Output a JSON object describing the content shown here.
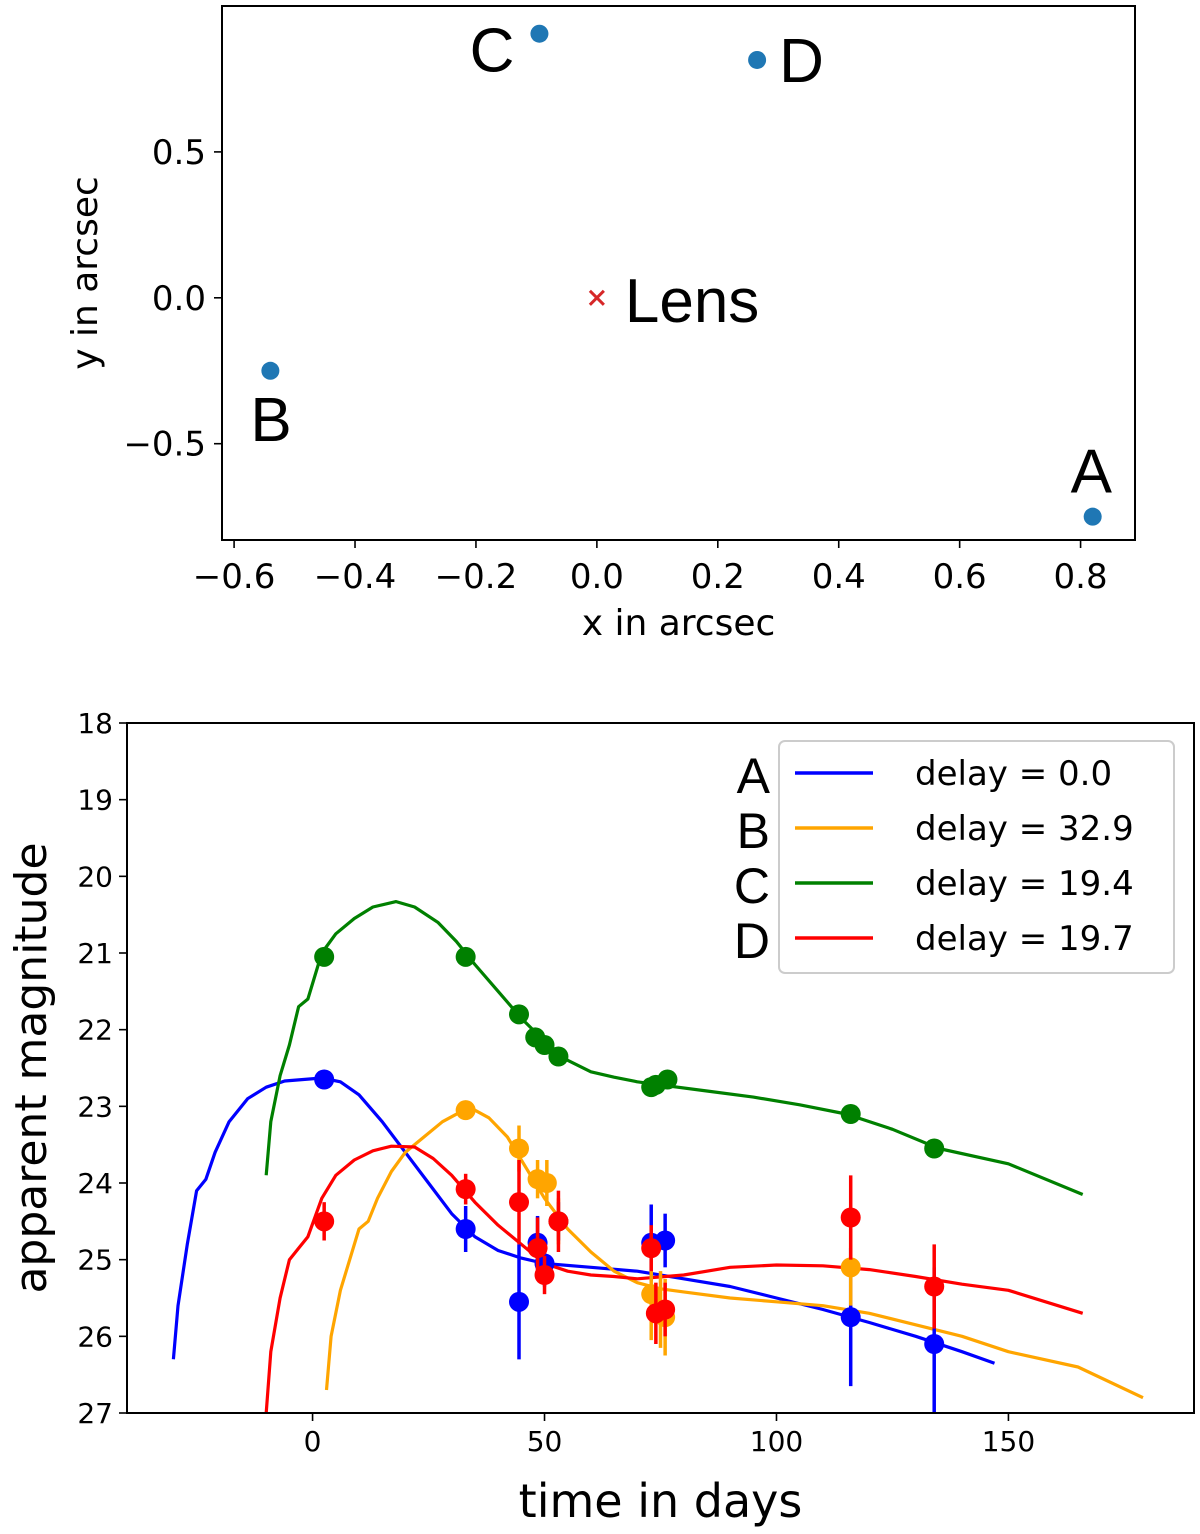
{
  "chart_data": [
    {
      "type": "scatter",
      "title": "",
      "xlabel": "x in arcsec",
      "ylabel": "y in arcsec",
      "xlim": [
        -0.62,
        0.89
      ],
      "ylim": [
        -0.83,
        1.0
      ],
      "xticks": [
        "−0.6",
        "−0.4",
        "−0.2",
        "0.0",
        "0.2",
        "0.4",
        "0.6",
        "0.8"
      ],
      "yticks": [
        "0.5",
        "0.0",
        "−0.5"
      ],
      "point_color": "#1f77b4",
      "lens_color": "#d62728",
      "points": [
        {
          "label": "A",
          "x": 0.82,
          "y": -0.75
        },
        {
          "label": "B",
          "x": -0.54,
          "y": -0.25
        },
        {
          "label": "C",
          "x": -0.095,
          "y": 0.905
        },
        {
          "label": "D",
          "x": 0.265,
          "y": 0.815
        }
      ],
      "lens": {
        "label": "Lens",
        "x": 0.0,
        "y": 0.0
      }
    },
    {
      "type": "line",
      "title": "",
      "xlabel": "time in days",
      "ylabel": "apparent magnitude",
      "xlim": [
        -40,
        190
      ],
      "ylim": [
        27,
        18
      ],
      "xticks": [
        "0",
        "50",
        "100",
        "150"
      ],
      "yticks": [
        "18",
        "19",
        "20",
        "21",
        "22",
        "23",
        "24",
        "25",
        "26",
        "27"
      ],
      "legend_position": "top-right",
      "series": [
        {
          "name": "delay = 0.0",
          "image": "A",
          "color": "#0000ff",
          "curve": [
            [
              -30,
              26.3
            ],
            [
              -29,
              25.6
            ],
            [
              -27,
              24.8
            ],
            [
              -25,
              24.1
            ],
            [
              -23,
              23.95
            ],
            [
              -21,
              23.6
            ],
            [
              -18,
              23.2
            ],
            [
              -14,
              22.9
            ],
            [
              -10,
              22.75
            ],
            [
              -6,
              22.67
            ],
            [
              -2,
              22.65
            ],
            [
              2,
              22.63
            ],
            [
              6,
              22.68
            ],
            [
              10,
              22.85
            ],
            [
              15,
              23.2
            ],
            [
              20,
              23.6
            ],
            [
              25,
              24.0
            ],
            [
              30,
              24.4
            ],
            [
              35,
              24.7
            ],
            [
              40,
              24.88
            ],
            [
              45,
              24.98
            ],
            [
              50,
              25.05
            ],
            [
              60,
              25.1
            ],
            [
              70,
              25.15
            ],
            [
              80,
              25.25
            ],
            [
              90,
              25.35
            ],
            [
              100,
              25.5
            ],
            [
              110,
              25.65
            ],
            [
              120,
              25.82
            ],
            [
              130,
              26.0
            ],
            [
              140,
              26.2
            ],
            [
              147,
              26.35
            ]
          ],
          "points": [
            [
              2.5,
              22.65,
              0.05
            ],
            [
              33,
              24.6,
              0.3
            ],
            [
              44.5,
              25.55,
              0.75
            ],
            [
              48.5,
              24.78,
              0.35
            ],
            [
              50,
              25.05,
              0.3
            ],
            [
              53,
              24.5,
              0.25
            ],
            [
              73,
              24.78,
              0.5
            ],
            [
              76,
              24.75,
              0.35
            ],
            [
              116,
              25.75,
              0.9
            ],
            [
              134,
              26.1,
              1.0
            ]
          ]
        },
        {
          "name": "delay = 32.9",
          "image": "B",
          "color": "#ffa500",
          "curve": [
            [
              3,
              26.7
            ],
            [
              4,
              26.0
            ],
            [
              6,
              25.4
            ],
            [
              8,
              25.0
            ],
            [
              10,
              24.6
            ],
            [
              12,
              24.5
            ],
            [
              14,
              24.2
            ],
            [
              17,
              23.85
            ],
            [
              20,
              23.6
            ],
            [
              24,
              23.4
            ],
            [
              28,
              23.2
            ],
            [
              32,
              23.07
            ],
            [
              35,
              23.05
            ],
            [
              38,
              23.15
            ],
            [
              42,
              23.4
            ],
            [
              46,
              23.8
            ],
            [
              50,
              24.2
            ],
            [
              55,
              24.6
            ],
            [
              60,
              24.9
            ],
            [
              65,
              25.15
            ],
            [
              70,
              25.3
            ],
            [
              75,
              25.38
            ],
            [
              80,
              25.42
            ],
            [
              90,
              25.5
            ],
            [
              100,
              25.55
            ],
            [
              110,
              25.6
            ],
            [
              120,
              25.7
            ],
            [
              130,
              25.85
            ],
            [
              140,
              26.0
            ],
            [
              150,
              26.2
            ],
            [
              165,
              26.4
            ],
            [
              179,
              26.8
            ]
          ],
          "points": [
            [
              33,
              23.05,
              0.05
            ],
            [
              44.5,
              23.55,
              0.3
            ],
            [
              48.5,
              23.95,
              0.25
            ],
            [
              50.5,
              24.0,
              0.3
            ],
            [
              53,
              24.5,
              0.3
            ],
            [
              73,
              25.45,
              0.6
            ],
            [
              75,
              25.65,
              0.5
            ],
            [
              76,
              25.75,
              0.5
            ],
            [
              116,
              25.1,
              0.5
            ]
          ]
        },
        {
          "name": "delay = 19.4",
          "image": "C",
          "color": "#008000",
          "curve": [
            [
              -10,
              23.9
            ],
            [
              -9,
              23.2
            ],
            [
              -7,
              22.6
            ],
            [
              -5,
              22.2
            ],
            [
              -3,
              21.7
            ],
            [
              -1,
              21.6
            ],
            [
              2,
              21.0
            ],
            [
              5,
              20.75
            ],
            [
              9,
              20.55
            ],
            [
              13,
              20.4
            ],
            [
              18,
              20.33
            ],
            [
              22,
              20.4
            ],
            [
              27,
              20.6
            ],
            [
              31,
              20.85
            ],
            [
              35,
              21.15
            ],
            [
              40,
              21.5
            ],
            [
              45,
              21.85
            ],
            [
              50,
              22.15
            ],
            [
              55,
              22.4
            ],
            [
              60,
              22.55
            ],
            [
              65,
              22.62
            ],
            [
              70,
              22.68
            ],
            [
              75,
              22.72
            ],
            [
              85,
              22.8
            ],
            [
              95,
              22.88
            ],
            [
              105,
              22.98
            ],
            [
              115,
              23.1
            ],
            [
              125,
              23.3
            ],
            [
              135,
              23.55
            ],
            [
              150,
              23.75
            ],
            [
              166,
              24.15
            ]
          ],
          "points": [
            [
              2.5,
              21.05,
              0.05
            ],
            [
              33,
              21.05,
              0.05
            ],
            [
              44.5,
              21.8,
              0.05
            ],
            [
              48,
              22.1,
              0.05
            ],
            [
              50,
              22.2,
              0.05
            ],
            [
              53,
              22.35,
              0.05
            ],
            [
              73,
              22.75,
              0.05
            ],
            [
              74,
              22.72,
              0.05
            ],
            [
              76.5,
              22.65,
              0.05
            ],
            [
              116,
              23.1,
              0.05
            ],
            [
              134,
              23.55,
              0.05
            ]
          ]
        },
        {
          "name": "delay = 19.7",
          "image": "D",
          "color": "#ff0000",
          "curve": [
            [
              -10,
              27.0
            ],
            [
              -9,
              26.2
            ],
            [
              -7,
              25.5
            ],
            [
              -5,
              25.0
            ],
            [
              -3,
              24.85
            ],
            [
              -1,
              24.7
            ],
            [
              2,
              24.2
            ],
            [
              5,
              23.9
            ],
            [
              9,
              23.7
            ],
            [
              13,
              23.58
            ],
            [
              17,
              23.52
            ],
            [
              22,
              23.53
            ],
            [
              26,
              23.68
            ],
            [
              30,
              23.9
            ],
            [
              35,
              24.25
            ],
            [
              40,
              24.55
            ],
            [
              45,
              24.8
            ],
            [
              50,
              25.05
            ],
            [
              55,
              25.15
            ],
            [
              60,
              25.2
            ],
            [
              65,
              25.22
            ],
            [
              70,
              25.25
            ],
            [
              80,
              25.2
            ],
            [
              90,
              25.1
            ],
            [
              100,
              25.07
            ],
            [
              110,
              25.08
            ],
            [
              120,
              25.13
            ],
            [
              130,
              25.22
            ],
            [
              140,
              25.32
            ],
            [
              150,
              25.4
            ],
            [
              166,
              25.7
            ]
          ],
          "points": [
            [
              2.5,
              24.5,
              0.25
            ],
            [
              33,
              24.08,
              0.2
            ],
            [
              44.5,
              24.25,
              0.55
            ],
            [
              48.5,
              24.85,
              0.4
            ],
            [
              50,
              25.2,
              0.25
            ],
            [
              53,
              24.5,
              0.4
            ],
            [
              73,
              24.85,
              0.3
            ],
            [
              74,
              25.7,
              0.4
            ],
            [
              76,
              25.65,
              0.35
            ],
            [
              116,
              24.45,
              0.55
            ],
            [
              134,
              25.35,
              0.55
            ]
          ]
        }
      ]
    }
  ]
}
